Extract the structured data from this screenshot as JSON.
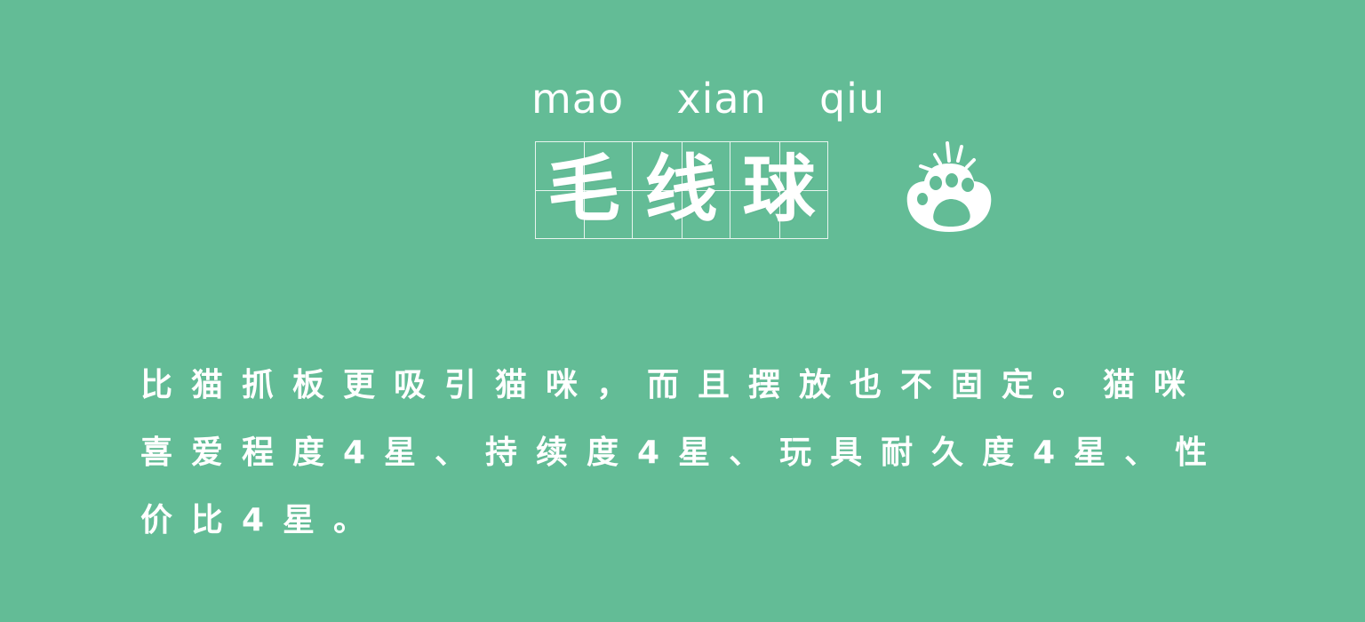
{
  "header": {
    "pinyin": "mao  xian  qiu",
    "title_chars": [
      "毛",
      "线",
      "球"
    ]
  },
  "paw": {
    "icon": "paw-icon",
    "color": "#ffffff"
  },
  "content": {
    "description": "比猫抓板更吸引猫咪，而且摆放也不固定。猫咪喜爱程度4星、持续度4星、玩具耐久度4星、性价比4星。"
  },
  "theme": {
    "background": "#63bc96",
    "text": "#ffffff"
  }
}
